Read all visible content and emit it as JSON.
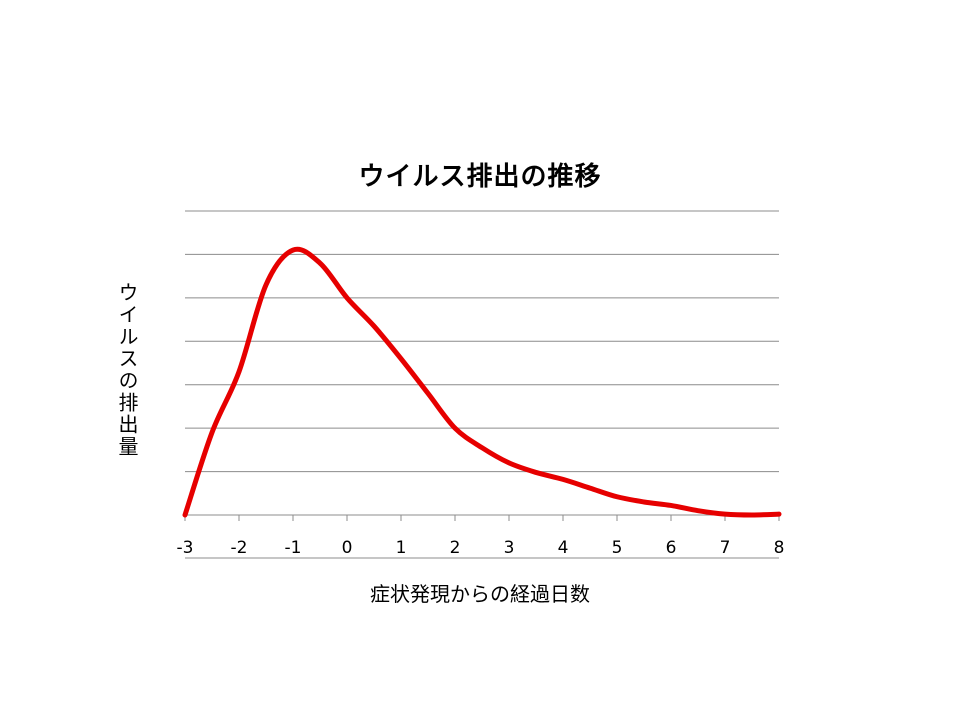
{
  "chart_data": {
    "type": "line",
    "title": "ウイルス排出の推移",
    "xlabel": "症状発現からの経過日数",
    "ylabel": "ウイルスの排出量",
    "x": [
      -3,
      -2.5,
      -2,
      -1.5,
      -1,
      -0.5,
      0,
      0.5,
      1,
      1.5,
      2,
      2.5,
      3,
      3.5,
      4,
      4.5,
      5,
      5.5,
      6,
      6.5,
      7,
      7.5,
      8
    ],
    "series": [
      {
        "values": [
          0,
          1.9,
          3.3,
          5.3,
          6.1,
          5.8,
          5.0,
          4.35,
          3.6,
          2.8,
          2.0,
          1.55,
          1.2,
          0.98,
          0.82,
          0.62,
          0.42,
          0.3,
          0.22,
          0.1,
          0.02,
          0.0,
          0.02
        ],
        "color": "#e60000"
      }
    ],
    "xlim": [
      -3,
      8
    ],
    "ylim": [
      0,
      7
    ],
    "xticks": [
      "-3",
      "-2",
      "-1",
      "0",
      "1",
      "2",
      "3",
      "4",
      "5",
      "6",
      "7",
      "8"
    ],
    "grid": true,
    "y_tick_labels": false,
    "legend": false
  }
}
